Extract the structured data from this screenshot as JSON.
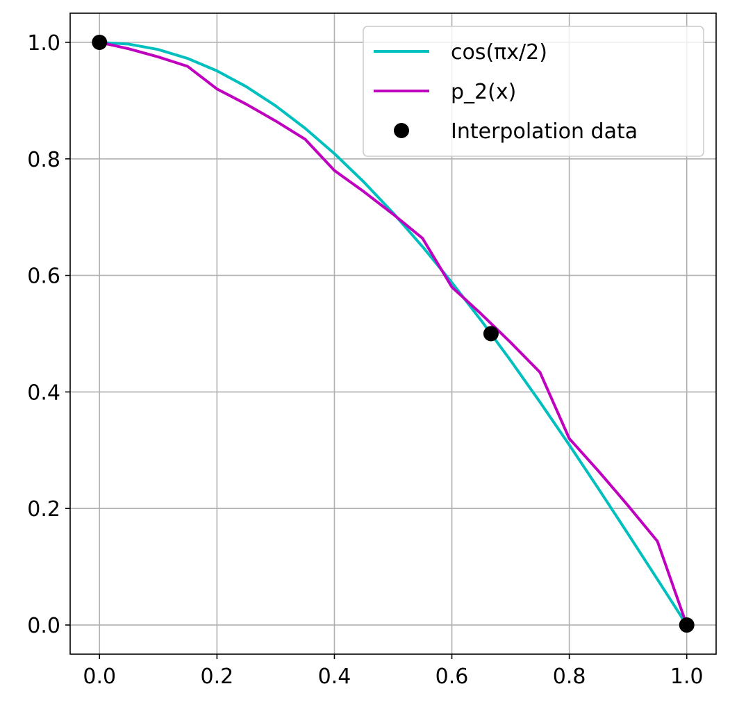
{
  "chart_data": {
    "type": "line",
    "xlim": [
      -0.05,
      1.05
    ],
    "ylim": [
      -0.05,
      1.05
    ],
    "grid": true,
    "legend_position": "top-right",
    "x_ticks": [
      {
        "value": 0.0,
        "label": "0.0"
      },
      {
        "value": 0.2,
        "label": "0.2"
      },
      {
        "value": 0.4,
        "label": "0.4"
      },
      {
        "value": 0.6,
        "label": "0.6"
      },
      {
        "value": 0.8,
        "label": "0.8"
      },
      {
        "value": 1.0,
        "label": "1.0"
      }
    ],
    "y_ticks": [
      {
        "value": 0.0,
        "label": "0.0"
      },
      {
        "value": 0.2,
        "label": "0.2"
      },
      {
        "value": 0.4,
        "label": "0.4"
      },
      {
        "value": 0.6,
        "label": "0.6"
      },
      {
        "value": 0.8,
        "label": "0.8"
      },
      {
        "value": 1.0,
        "label": "1.0"
      }
    ],
    "series": [
      {
        "name": "cos(πx/2)",
        "kind": "line",
        "color": "#00bfbf",
        "x": [
          0.0,
          0.05,
          0.1,
          0.15,
          0.2,
          0.25,
          0.3,
          0.35,
          0.4,
          0.45,
          0.5,
          0.55,
          0.6,
          0.65,
          0.7,
          0.75,
          0.8,
          0.85,
          0.9,
          0.95,
          1.0
        ],
        "y": [
          1.0,
          0.9969,
          0.9877,
          0.9724,
          0.9511,
          0.9239,
          0.891,
          0.8526,
          0.809,
          0.7604,
          0.7071,
          0.6494,
          0.5878,
          0.5225,
          0.454,
          0.3827,
          0.309,
          0.2334,
          0.1564,
          0.0785,
          0.0
        ]
      },
      {
        "name": "p_2(x)",
        "kind": "line",
        "color": "#bf00bf",
        "x": [
          0.0,
          0.05,
          0.1,
          0.15,
          0.2,
          0.25,
          0.3,
          0.35,
          0.4,
          0.45,
          0.5,
          0.55,
          0.6,
          0.65,
          0.7,
          0.75,
          0.8,
          0.85,
          0.9,
          0.95,
          1.0
        ],
        "y": [
          1.0,
          0.9888,
          0.975,
          0.9588,
          0.92,
          0.8938,
          0.865,
          0.8338,
          0.78,
          0.7438,
          0.705,
          0.6638,
          0.58,
          0.5338,
          0.485,
          0.4338,
          0.32,
          0.2638,
          0.205,
          0.1438,
          0.0
        ]
      },
      {
        "name": "Interpolation data",
        "kind": "markers",
        "color": "#000000",
        "x": [
          0.0,
          0.6667,
          1.0
        ],
        "y": [
          1.0,
          0.5,
          0.0
        ]
      }
    ]
  }
}
